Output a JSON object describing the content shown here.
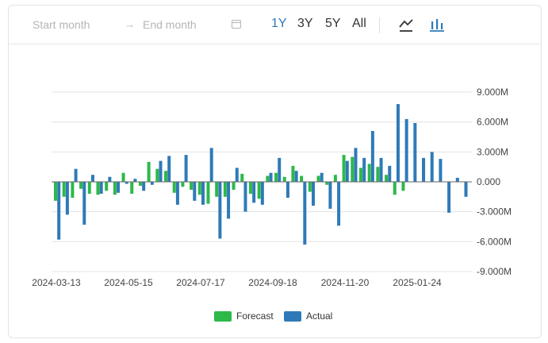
{
  "toolbar": {
    "start_placeholder": "Start month",
    "end_placeholder": "End month",
    "ranges": [
      "1Y",
      "3Y",
      "5Y",
      "All"
    ],
    "active_range": "1Y",
    "chart_types": [
      "line-chart-icon",
      "bar-chart-icon"
    ],
    "active_chart_type": "bar-chart-icon"
  },
  "colors": {
    "forecast": "#2db84a",
    "actual": "#2e7ab8",
    "accent": "#2e7ab8"
  },
  "chart_data": {
    "type": "bar",
    "x_tick_labels": [
      "2024-03-13",
      "2024-05-15",
      "2024-07-17",
      "2024-09-18",
      "2024-11-20",
      "2025-01-24"
    ],
    "y_tick_labels": [
      "9.000M",
      "6.000M",
      "3.000M",
      "0.000",
      "-3.000M",
      "-6.000M",
      "-9.000M"
    ],
    "ylim": [
      -9,
      9
    ],
    "y_unit": "M",
    "grid": true,
    "legend_position": "bottom",
    "series": [
      {
        "name": "Forecast",
        "values": [
          -1.9,
          -1.5,
          -1.6,
          -0.7,
          -1.2,
          -1.3,
          -0.9,
          -1.3,
          0.9,
          -1.2,
          -0.4,
          2.0,
          1.3,
          1.1,
          -1.1,
          -0.5,
          -0.8,
          -1.3,
          -2.2,
          -1.5,
          -1.5,
          -0.8,
          0.8,
          -1.2,
          -1.7,
          0.6,
          0.9,
          0.5,
          1.6,
          0.6,
          -1.0,
          0.6,
          -0.3,
          0.7,
          2.7,
          2.5,
          1.4,
          1.8,
          1.5,
          0.7,
          -1.3,
          -0.9
        ]
      },
      {
        "name": "Actual",
        "values": [
          -5.8,
          -3.3,
          1.3,
          -4.3,
          0.7,
          -1.2,
          0.5,
          -1.1,
          -0.2,
          0.3,
          -0.9,
          -0.3,
          2.1,
          2.6,
          -2.3,
          2.7,
          -1.9,
          -2.3,
          3.4,
          -5.7,
          -3.7,
          1.4,
          -3.0,
          -2.1,
          -2.3,
          0.9,
          2.4,
          -1.6,
          1.1,
          -6.3,
          -2.4,
          0.9,
          -2.7,
          -4.4,
          2.1,
          3.4,
          2.4,
          5.1,
          2.4,
          1.6,
          7.8,
          6.3,
          5.9,
          2.4,
          3.0,
          2.3,
          -3.1,
          0.4,
          -1.5
        ]
      }
    ]
  },
  "legend": {
    "forecast_label": "Forecast",
    "actual_label": "Actual"
  }
}
